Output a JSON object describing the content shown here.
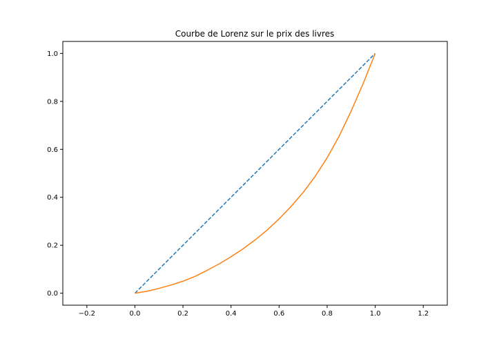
{
  "chart_data": {
    "type": "line",
    "title": "Courbe de Lorenz sur le prix des livres",
    "xlabel": "",
    "ylabel": "",
    "xlim": [
      -0.3,
      1.3
    ],
    "ylim": [
      -0.05,
      1.05
    ],
    "grid": false,
    "xticks": [
      -0.2,
      0.0,
      0.2,
      0.4,
      0.6,
      0.8,
      1.0,
      1.2
    ],
    "xtick_labels": [
      "−0.2",
      "0.0",
      "0.2",
      "0.4",
      "0.6",
      "0.8",
      "1.0",
      "1.2"
    ],
    "yticks": [
      0.0,
      0.2,
      0.4,
      0.6,
      0.8,
      1.0
    ],
    "ytick_labels": [
      "0.0",
      "0.2",
      "0.4",
      "0.6",
      "0.8",
      "1.0"
    ],
    "series": [
      {
        "style": "dashed",
        "color": "#1f77b4",
        "x": [
          0.0,
          1.0
        ],
        "y": [
          0.0,
          1.0
        ]
      },
      {
        "style": "solid",
        "color": "#ff7f0e",
        "x": [
          0.0,
          0.05,
          0.1,
          0.15,
          0.2,
          0.25,
          0.3,
          0.35,
          0.4,
          0.45,
          0.5,
          0.55,
          0.6,
          0.65,
          0.7,
          0.75,
          0.8,
          0.85,
          0.9,
          0.95,
          0.98,
          1.0
        ],
        "y": [
          0.0,
          0.008,
          0.02,
          0.034,
          0.05,
          0.07,
          0.095,
          0.122,
          0.152,
          0.185,
          0.222,
          0.263,
          0.31,
          0.362,
          0.42,
          0.487,
          0.565,
          0.655,
          0.76,
          0.875,
          0.95,
          1.0
        ]
      }
    ]
  }
}
